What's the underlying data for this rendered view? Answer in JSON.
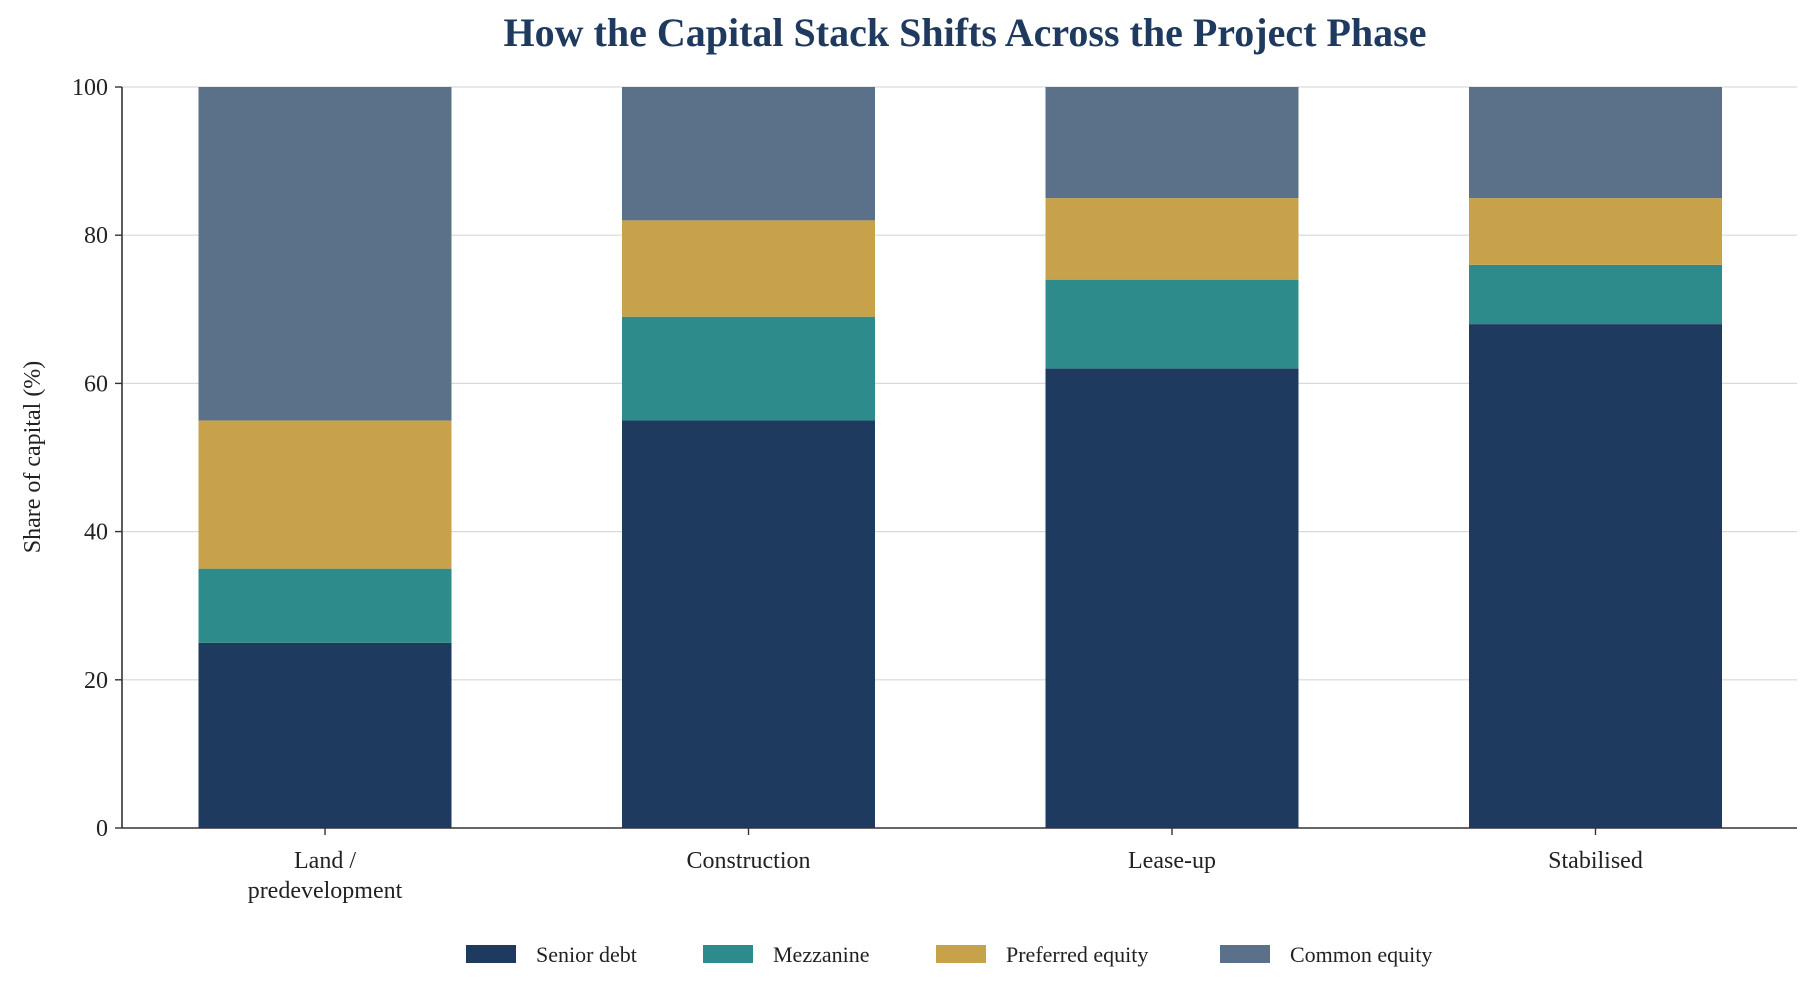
{
  "chart_data": {
    "type": "bar",
    "stacked": true,
    "title": "How the Capital Stack Shifts Across the Project Phase",
    "xlabel": "",
    "ylabel": "Share of capital (%)",
    "ylim": [
      0,
      100
    ],
    "yticks": [
      0,
      20,
      40,
      60,
      80,
      100
    ],
    "grid": "horizontal",
    "legend_position": "bottom",
    "categories": [
      [
        "Land /",
        "predevelopment"
      ],
      [
        "Construction"
      ],
      [
        "Lease-up"
      ],
      [
        "Stabilised"
      ]
    ],
    "series": [
      {
        "name": "Senior debt",
        "color": "#1f3a5f",
        "values": [
          25,
          55,
          62,
          68
        ]
      },
      {
        "name": "Mezzanine",
        "color": "#2e8b8b",
        "values": [
          10,
          14,
          12,
          8
        ]
      },
      {
        "name": "Preferred equity",
        "color": "#c8a24a",
        "values": [
          20,
          13,
          11,
          9
        ]
      },
      {
        "name": "Common equity",
        "color": "#5b7189",
        "values": [
          45,
          18,
          15,
          15
        ]
      }
    ]
  }
}
